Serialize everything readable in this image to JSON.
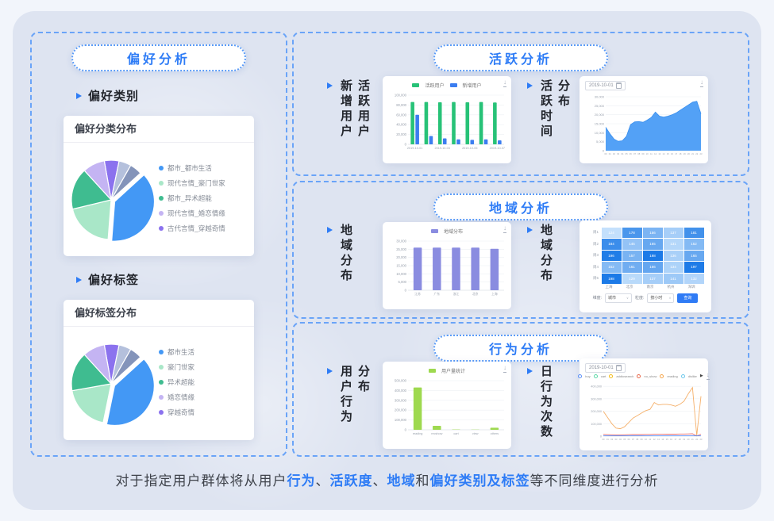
{
  "left_section": {
    "pill": "偏好分析",
    "group1": {
      "label": "偏好类别",
      "card_title": "偏好分类分布"
    },
    "group2": {
      "label": "偏好标签",
      "card_title": "偏好标签分布"
    }
  },
  "sections": {
    "active": {
      "pill": "活跃分析",
      "label1": [
        "新增用户",
        "活跃用户"
      ],
      "label2": [
        "活跃时间",
        "分布"
      ]
    },
    "region": {
      "pill": "地域分析",
      "label1": [
        "地域分布"
      ],
      "label2": [
        "地域分布"
      ]
    },
    "behavior": {
      "pill": "行为分析",
      "label1": [
        "用户行为",
        "分布"
      ],
      "label2": [
        "日行为次数"
      ]
    }
  },
  "caption": {
    "segments": [
      {
        "text": "对于指定用户群体将从用户",
        "accent": false
      },
      {
        "text": "行为",
        "accent": true
      },
      {
        "text": "、",
        "accent": false
      },
      {
        "text": "活跃度",
        "accent": true
      },
      {
        "text": "、",
        "accent": false
      },
      {
        "text": "地域",
        "accent": true
      },
      {
        "text": "和",
        "accent": false
      },
      {
        "text": "偏好类别及标签",
        "accent": true
      },
      {
        "text": "等不同维度进行分析",
        "accent": false
      }
    ]
  },
  "colors": {
    "accent": "#2e7cf6",
    "dashed_border": "#6aa4f8"
  },
  "chart_data": [
    {
      "id": "pref_category_pie",
      "type": "pie",
      "title": "偏好分类分布",
      "start_angle": -100,
      "slices": [
        {
          "value": 6,
          "color": "#8b72ee",
          "label": "古代言情_穿越奇情"
        },
        {
          "value": 5,
          "color": "#b4c0dc"
        },
        {
          "value": 5,
          "color": "#8494ba"
        },
        {
          "value": 38,
          "color": "#4398f5",
          "label": "都市_都市生活",
          "explode": true
        },
        {
          "value": 20,
          "color": "#a9e7c8",
          "label": "现代言情_豪门世家"
        },
        {
          "value": 17,
          "color": "#3fbc90",
          "label": "都市_异术超能"
        },
        {
          "value": 9,
          "color": "#c4b4f3",
          "label": "现代言情_婚恋情缘"
        }
      ],
      "legend": [
        "都市_都市生活",
        "现代言情_豪门世家",
        "都市_异术超能",
        "现代言情_婚恋情缘",
        "古代言情_穿越奇情"
      ],
      "legend_colors": [
        "#4398f5",
        "#a9e7c8",
        "#3fbc90",
        "#c4b4f3",
        "#8b72ee"
      ]
    },
    {
      "id": "pref_tag_pie",
      "type": "pie",
      "title": "偏好标签分布",
      "start_angle": -100,
      "slices": [
        {
          "value": 6,
          "color": "#8b72ee",
          "label": "穿越奇情"
        },
        {
          "value": 5,
          "color": "#b4c0dc"
        },
        {
          "value": 5,
          "color": "#8494ba"
        },
        {
          "value": 40,
          "color": "#4398f5",
          "label": "都市生活",
          "explode": true
        },
        {
          "value": 19,
          "color": "#a9e7c8",
          "label": "豪门世家"
        },
        {
          "value": 16,
          "color": "#3fbc90",
          "label": "异术超能"
        },
        {
          "value": 9,
          "color": "#c4b4f3",
          "label": "婚恋情缘"
        }
      ],
      "legend": [
        "都市生活",
        "豪门世家",
        "异术超能",
        "婚恋情缘",
        "穿越奇情"
      ],
      "legend_colors": [
        "#4398f5",
        "#a9e7c8",
        "#3fbc90",
        "#c4b4f3",
        "#8b72ee"
      ]
    },
    {
      "id": "active_users_bar",
      "type": "grouped_bar",
      "legend": [
        {
          "name": "活跃用户",
          "color": "#27c277"
        },
        {
          "name": "新增用户",
          "color": "#3b7df0"
        }
      ],
      "x_labels": [
        "2019-10-01",
        "",
        "2019-10-03",
        "",
        "2019-10-05",
        "",
        "2019-10-07"
      ],
      "series": [
        {
          "name": "活跃用户",
          "color": "#27c277",
          "values": [
            86000,
            86000,
            85500,
            86000,
            85500,
            86000,
            85000
          ]
        },
        {
          "name": "新增用户",
          "color": "#3b7df0",
          "values": [
            60000,
            17000,
            12000,
            10000,
            9000,
            10000,
            8000
          ]
        }
      ],
      "y_ticks": [
        0,
        20000,
        40000,
        60000,
        80000,
        100000
      ],
      "y_max": 100000
    },
    {
      "id": "active_time_area",
      "type": "area",
      "date_label": "2019-10-01",
      "color": "#4a9cf6",
      "x_labels": [
        "00",
        "01",
        "02",
        "03",
        "04",
        "05",
        "06",
        "07",
        "08",
        "09",
        "10",
        "11",
        "12",
        "13",
        "14",
        "15",
        "16",
        "17",
        "18",
        "19",
        "20",
        "21",
        "22",
        "23"
      ],
      "values": [
        13000,
        9500,
        6500,
        5200,
        5500,
        8000,
        14500,
        16000,
        16200,
        15800,
        17000,
        18500,
        21500,
        19200,
        18700,
        19200,
        20000,
        21000,
        22500,
        24000,
        25500,
        27000,
        27500,
        20500
      ],
      "y_ticks": [
        0,
        5000,
        10000,
        15000,
        20000,
        25000,
        30000
      ],
      "y_max": 30000
    },
    {
      "id": "region_bar",
      "type": "grouped_bar",
      "legend": [
        {
          "name": "地域分布",
          "color": "#8a8ce0"
        }
      ],
      "x_labels": [
        "江苏",
        "广东",
        "浙江",
        "北京",
        "上海"
      ],
      "series": [
        {
          "name": "地域分布",
          "color": "#8a8ce0",
          "values": [
            26000,
            26000,
            26000,
            26000,
            25300
          ]
        }
      ],
      "y_ticks": [
        0,
        5000,
        10000,
        15000,
        20000,
        25000,
        30000
      ],
      "y_max": 30000
    },
    {
      "id": "region_heatmap",
      "type": "heatmap",
      "row_labels": [
        "周1",
        "周2",
        "周3",
        "周4",
        "周5"
      ],
      "col_labels": [
        "上海",
        "北京",
        "南京",
        "杭州",
        "深圳"
      ],
      "values": [
        [
          124,
          178,
          156,
          137,
          181
        ],
        [
          184,
          145,
          165,
          131,
          152
        ],
        [
          196,
          157,
          198,
          136,
          165
        ],
        [
          152,
          161,
          166,
          134,
          197
        ],
        [
          198,
          129,
          137,
          141,
          132
        ]
      ],
      "min": 120,
      "max": 200,
      "filters": [
        {
          "label": "维度:",
          "value": "城市"
        },
        {
          "label": "粒度:",
          "value": "按小时"
        }
      ],
      "button": "查询"
    },
    {
      "id": "behavior_bar",
      "type": "grouped_bar",
      "legend": [
        {
          "name": "用户量统计",
          "color": "#9ed94f"
        }
      ],
      "x_labels": [
        "reading",
        "recshow",
        "cart",
        "view",
        "others"
      ],
      "series": [
        {
          "name": "用户量统计",
          "color": "#9ed94f",
          "values": [
            430000,
            40000,
            3000,
            2000,
            21000
          ]
        }
      ],
      "y_ticks": [
        0,
        100000,
        200000,
        300000,
        400000,
        500000
      ],
      "y_max": 500000
    },
    {
      "id": "daily_behavior_line",
      "type": "line",
      "date_label": "2019-10-01",
      "legend": [
        {
          "name": "buy",
          "color": "#5b8ff9"
        },
        {
          "name": "cart",
          "color": "#5ad8a6"
        },
        {
          "name": "addtosearch",
          "color": "#f6bd16"
        },
        {
          "name": "no_show",
          "color": "#e8684a"
        },
        {
          "name": "reading",
          "color": "#f5a54a"
        },
        {
          "name": "dislike",
          "color": "#6dc8ec"
        }
      ],
      "x_labels": [
        "00",
        "01",
        "02",
        "03",
        "04",
        "05",
        "06",
        "07",
        "08",
        "09",
        "10",
        "11",
        "12",
        "13",
        "14",
        "15",
        "16",
        "17",
        "18",
        "19",
        "20",
        "21",
        "22",
        "23"
      ],
      "series": [
        {
          "name": "reading",
          "color": "#f5b06a",
          "values": [
            200000,
            150000,
            100000,
            65000,
            60000,
            75000,
            110000,
            145000,
            165000,
            185000,
            205000,
            215000,
            270000,
            250000,
            255000,
            255000,
            250000,
            240000,
            255000,
            280000,
            340000,
            390000,
            5000,
            320000
          ]
        },
        {
          "name": "no_show",
          "color": "#e87070",
          "values": [
            14000,
            12000,
            11000,
            10000,
            10000,
            11000,
            12000,
            13000,
            13000,
            13000,
            14000,
            14000,
            15000,
            15000,
            15000,
            16000,
            16000,
            16000,
            17000,
            17000,
            18000,
            19000,
            1000,
            16000
          ]
        },
        {
          "name": "buy",
          "color": "#5b8ff9",
          "values": [
            2500,
            2500,
            2500,
            2500,
            2500,
            2500,
            2500,
            2500,
            2500,
            2500,
            2500,
            2500,
            2500,
            2500,
            2500,
            2500,
            2500,
            2500,
            2500,
            2500,
            2500,
            2500,
            2500,
            2500
          ]
        }
      ],
      "y_ticks": [
        0,
        100000,
        200000,
        300000,
        400000
      ],
      "y_max": 420000
    }
  ]
}
